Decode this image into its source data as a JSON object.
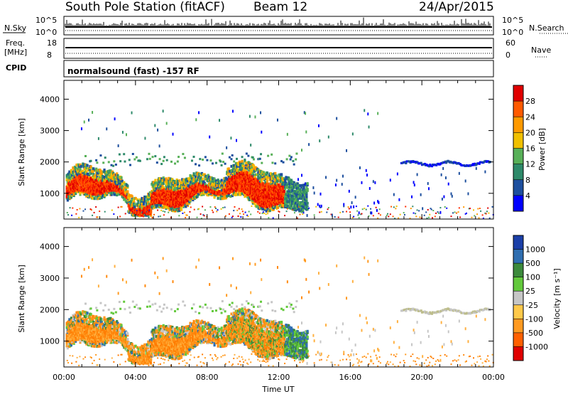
{
  "header": {
    "station": "South Pole Station (fitACF)",
    "beam": "Beam 12",
    "date": "24/Apr/2015"
  },
  "top_panels": {
    "nsky_label": "N.Sky",
    "nsky_ticks": [
      "10^5",
      "10^0"
    ],
    "nsearch_label": "N.Search",
    "nsearch_ticks": [
      "10^5",
      "10^0"
    ],
    "freq_label_line1": "Freq.",
    "freq_label_line2": "[MHz]",
    "freq_ticks": [
      "18",
      "8"
    ],
    "nave_label": "Nave",
    "nave_ticks": [
      "60",
      "0"
    ],
    "cpid_label": "CPID",
    "cpid_text": "normalsound (fast) -157 RF"
  },
  "chart_data": [
    {
      "type": "heatmap",
      "name": "power-panel",
      "ylabel": "Slant Range [km]",
      "yticks": [
        "1000",
        "2000",
        "3000",
        "4000"
      ],
      "ylim": [
        180,
        4600
      ],
      "xlim": [
        0,
        24
      ],
      "xticks": [
        "00:00",
        "04:00",
        "08:00",
        "12:00",
        "16:00",
        "20:00",
        "00:00"
      ],
      "colorbar": {
        "label": "Power [dB]",
        "ticks": [
          "28",
          "24",
          "20",
          "16",
          "12",
          "8",
          "4"
        ],
        "colors": [
          "#e00000",
          "#ff5a00",
          "#ff9a00",
          "#f0c000",
          "#58b058",
          "#2e8a6a",
          "#1d4f9e",
          "#0000ff"
        ]
      },
      "regions": [
        {
          "t0": 0.1,
          "t1": 12.2,
          "r0": 560,
          "r1": 1300,
          "level": "high",
          "note": "E/F region echoes, 24-32 dB"
        },
        {
          "t0": 0.1,
          "t1": 13.5,
          "r0": 1100,
          "r1": 1800,
          "level": "medium",
          "note": "12-20 dB fringe"
        },
        {
          "t0": 18.8,
          "t1": 23.8,
          "r0": 1900,
          "r1": 2100,
          "level": "low",
          "note": "4-8 dB band"
        },
        {
          "t0": 1.0,
          "t1": 13.0,
          "r0": 1900,
          "r1": 2300,
          "level": "low-medium",
          "note": "scattered"
        }
      ]
    },
    {
      "type": "heatmap",
      "name": "velocity-panel",
      "ylabel": "Slant Range [km]",
      "yticks": [
        "1000",
        "2000",
        "3000",
        "4000"
      ],
      "ylim": [
        180,
        4600
      ],
      "xlim": [
        0,
        24
      ],
      "xticks": [
        "00:00",
        "04:00",
        "08:00",
        "12:00",
        "16:00",
        "20:00",
        "00:00"
      ],
      "xlabel": "Time UT",
      "colorbar": {
        "label": "Velocity [m s⁻¹]",
        "ticks": [
          "1000",
          "500",
          "100",
          "25",
          "-25",
          "-100",
          "-500",
          "-1000"
        ],
        "colors": [
          "#1b3fa8",
          "#2f6eb0",
          "#3c8a3c",
          "#63c93c",
          "#c6c6c6",
          "#ffc94a",
          "#ff9a20",
          "#ff6000",
          "#e00000"
        ]
      },
      "regions": [
        {
          "t0": 0.2,
          "t1": 12.0,
          "r0": 560,
          "r1": 1600,
          "level": "-100 to -500",
          "note": "mostly orange"
        },
        {
          "t0": 8.5,
          "t1": 13.5,
          "r0": 900,
          "r1": 1700,
          "level": "25 to 500",
          "note": "green fringe"
        },
        {
          "t0": 18.8,
          "t1": 23.8,
          "r0": 1900,
          "r1": 2100,
          "level": "-25 to 25",
          "note": "grey band"
        }
      ]
    }
  ]
}
